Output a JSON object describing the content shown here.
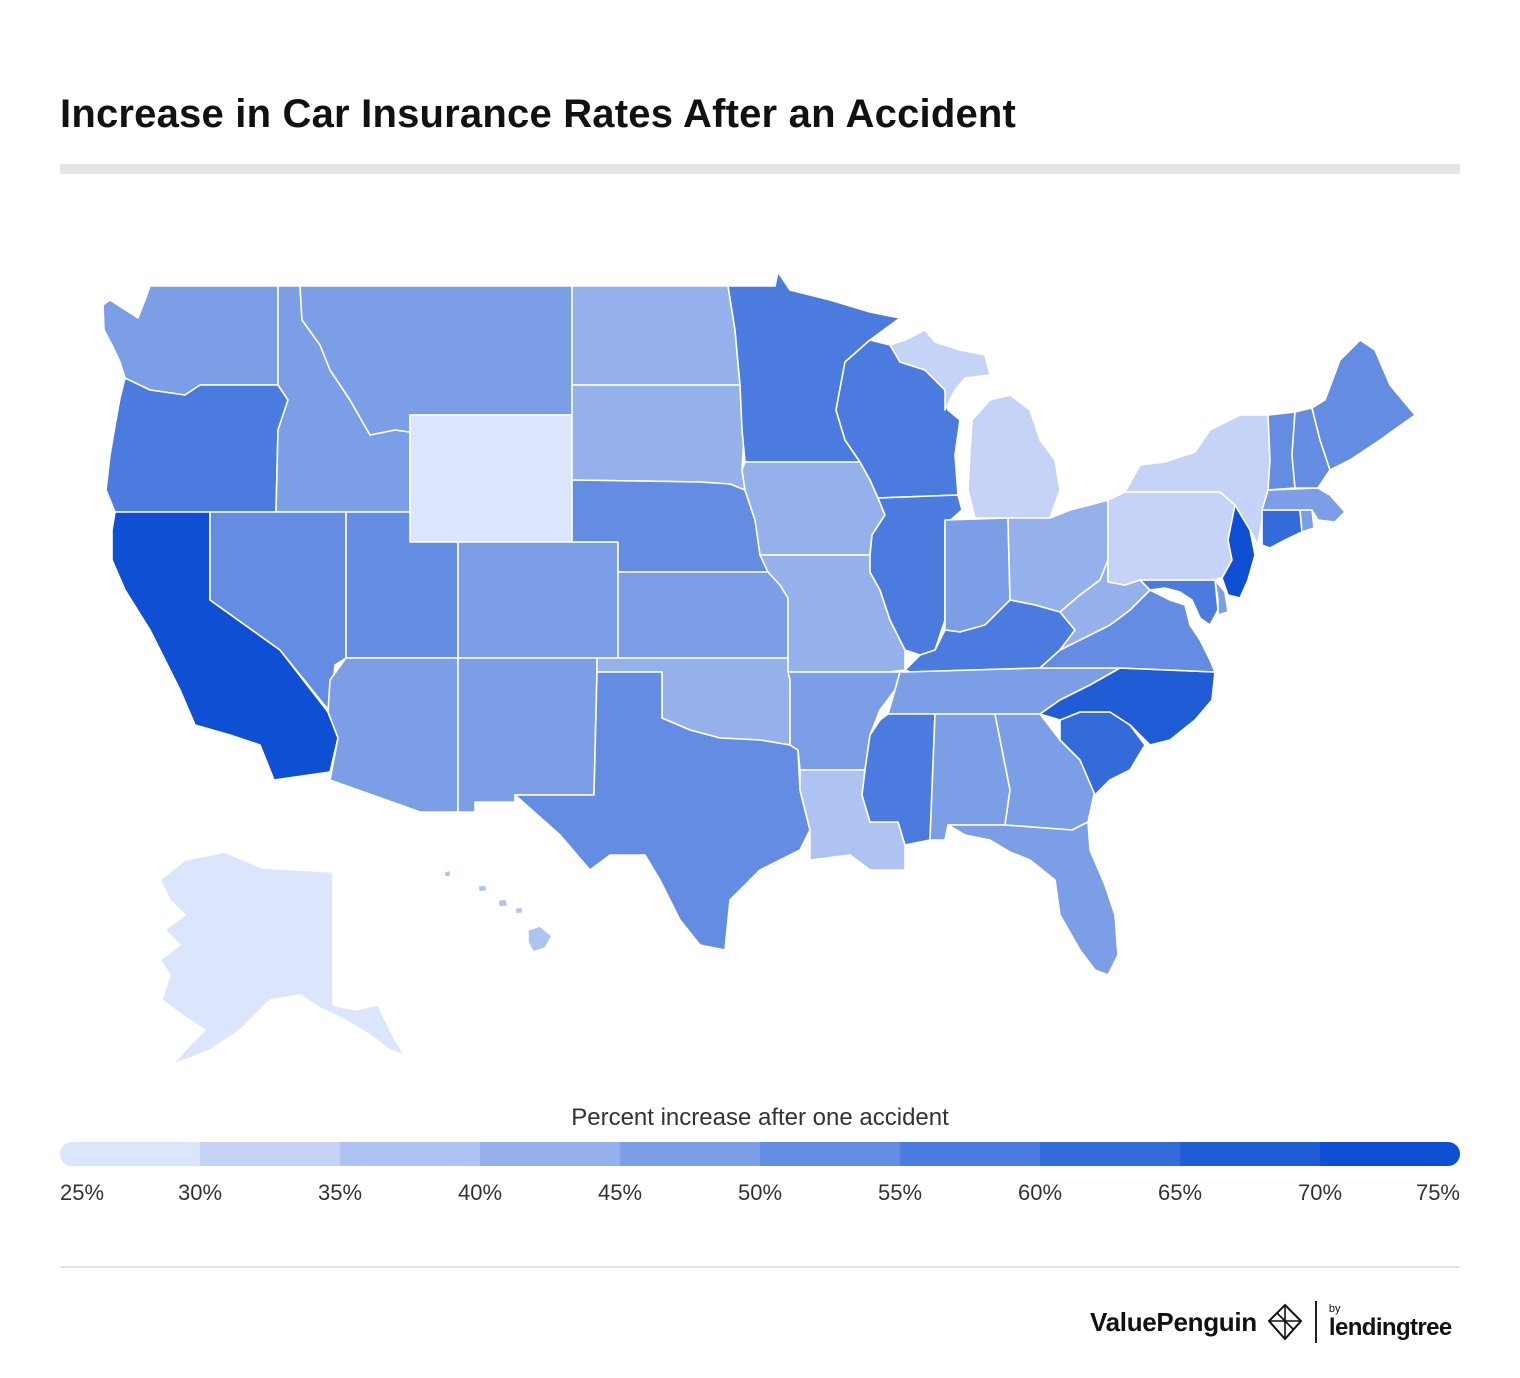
{
  "title": "Increase in Car Insurance Rates After an Accident",
  "legend": {
    "title": "Percent increase after one accident",
    "ticks": [
      "25%",
      "30%",
      "35%",
      "40%",
      "45%",
      "50%",
      "55%",
      "60%",
      "65%",
      "70%",
      "75%"
    ],
    "colors": [
      "#dbe5fb",
      "#c4d3f6",
      "#aec3f1",
      "#95b1ec",
      "#7c9ee7",
      "#638ce2",
      "#4b7bde",
      "#346bda",
      "#1f5cd6",
      "#0f4fd4"
    ]
  },
  "brand": {
    "valuepenguin": "ValuePenguin",
    "by": "by",
    "lendingtree": "lendingtree",
    "penguin_icon": "valuepenguin-logo-icon"
  },
  "chart_data": {
    "type": "choropleth",
    "metric": "Percent increase after one accident",
    "scale": {
      "min": 25,
      "max": 75,
      "step": 5,
      "unit": "%"
    },
    "states": [
      {
        "state": "WA",
        "value": 48
      },
      {
        "state": "OR",
        "value": 57
      },
      {
        "state": "CA",
        "value": 74
      },
      {
        "state": "ID",
        "value": 48
      },
      {
        "state": "NV",
        "value": 52
      },
      {
        "state": "MT",
        "value": 48
      },
      {
        "state": "WY",
        "value": 27
      },
      {
        "state": "UT",
        "value": 53
      },
      {
        "state": "AZ",
        "value": 48
      },
      {
        "state": "CO",
        "value": 48
      },
      {
        "state": "NM",
        "value": 48
      },
      {
        "state": "ND",
        "value": 42
      },
      {
        "state": "SD",
        "value": 42
      },
      {
        "state": "NE",
        "value": 52
      },
      {
        "state": "KS",
        "value": 48
      },
      {
        "state": "OK",
        "value": 42
      },
      {
        "state": "TX",
        "value": 52
      },
      {
        "state": "MN",
        "value": 57
      },
      {
        "state": "IA",
        "value": 42
      },
      {
        "state": "MO",
        "value": 42
      },
      {
        "state": "AR",
        "value": 47
      },
      {
        "state": "LA",
        "value": 38
      },
      {
        "state": "WI",
        "value": 57
      },
      {
        "state": "IL",
        "value": 57
      },
      {
        "state": "MI",
        "value": 33
      },
      {
        "state": "IN",
        "value": 48
      },
      {
        "state": "OH",
        "value": 42
      },
      {
        "state": "KY",
        "value": 57
      },
      {
        "state": "TN",
        "value": 48
      },
      {
        "state": "MS",
        "value": 57
      },
      {
        "state": "AL",
        "value": 48
      },
      {
        "state": "GA",
        "value": 48
      },
      {
        "state": "FL",
        "value": 48
      },
      {
        "state": "SC",
        "value": 60
      },
      {
        "state": "NC",
        "value": 67
      },
      {
        "state": "VA",
        "value": 52
      },
      {
        "state": "WV",
        "value": 42
      },
      {
        "state": "PA",
        "value": 33
      },
      {
        "state": "NY",
        "value": 33
      },
      {
        "state": "MD",
        "value": 57
      },
      {
        "state": "DE",
        "value": 48
      },
      {
        "state": "NJ",
        "value": 72
      },
      {
        "state": "CT",
        "value": 62
      },
      {
        "state": "RI",
        "value": 48
      },
      {
        "state": "MA",
        "value": 48
      },
      {
        "state": "VT",
        "value": 53
      },
      {
        "state": "NH",
        "value": 53
      },
      {
        "state": "ME",
        "value": 52
      },
      {
        "state": "AK",
        "value": 27
      },
      {
        "state": "HI",
        "value": 38
      }
    ]
  }
}
